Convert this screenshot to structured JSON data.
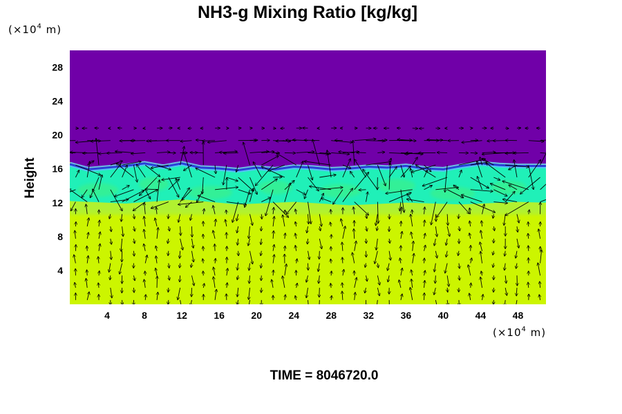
{
  "chart_data": {
    "type": "heatmap",
    "title": "NH3-g Mixing Ratio [kg/kg]",
    "ylabel": "Height",
    "xlabel": "",
    "x_unit": {
      "prefix": "(×10",
      "exp": "4",
      "suffix": " m)"
    },
    "y_unit": {
      "prefix": "(×10",
      "exp": "4",
      "suffix": " m)"
    },
    "xlim": [
      0,
      51
    ],
    "ylim": [
      0,
      30
    ],
    "x_ticks": [
      4,
      8,
      12,
      16,
      20,
      24,
      28,
      32,
      36,
      40,
      44,
      48
    ],
    "y_ticks": [
      4,
      8,
      12,
      16,
      20,
      24,
      28
    ],
    "colors": {
      "upper": "#7000a8",
      "front": "#2a40d8",
      "edge": "#60b8ff",
      "mixed": "#20f0b8",
      "mixed_alt": "#38f090",
      "transition": "#a8f040",
      "lower": "#ccf500",
      "arrow": "#000000"
    },
    "layers": [
      {
        "name": "upper",
        "y_from": 17,
        "y_to": 30
      },
      {
        "name": "mixed",
        "y_from": 12,
        "y_to": 16.5
      },
      {
        "name": "lower",
        "y_from": 0,
        "y_to": 11.5
      }
    ],
    "interface_height": [
      [
        0,
        16.8
      ],
      [
        2,
        16.2
      ],
      [
        4,
        16.4
      ],
      [
        6,
        16.6
      ],
      [
        8,
        16.9
      ],
      [
        10,
        16.5
      ],
      [
        12,
        16.9
      ],
      [
        14,
        16.4
      ],
      [
        16,
        16.3
      ],
      [
        18,
        16.1
      ],
      [
        20,
        16.4
      ],
      [
        22,
        16.2
      ],
      [
        24,
        16.5
      ],
      [
        26,
        16.4
      ],
      [
        28,
        16.2
      ],
      [
        30,
        16.3
      ],
      [
        32,
        16.5
      ],
      [
        34,
        16.4
      ],
      [
        36,
        16.6
      ],
      [
        38,
        16.3
      ],
      [
        40,
        16.2
      ],
      [
        42,
        16.6
      ],
      [
        44,
        16.9
      ],
      [
        46,
        16.7
      ],
      [
        48,
        16.6
      ],
      [
        51,
        16.6
      ]
    ],
    "vector_field": "velocity arrows overlaid on the domain",
    "time_label": "TIME = 8046720.0"
  }
}
